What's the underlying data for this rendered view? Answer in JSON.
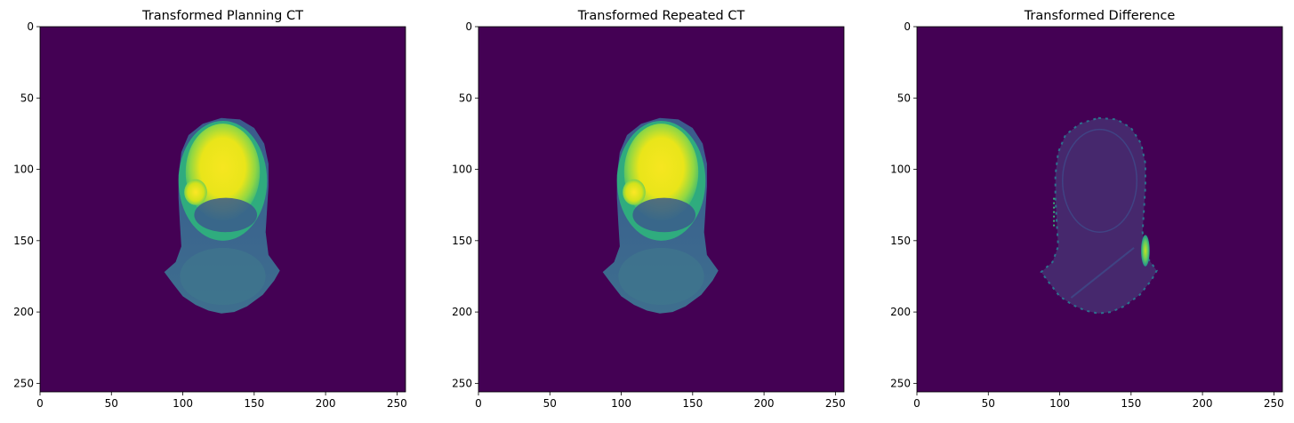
{
  "chart_data": [
    {
      "type": "heatmap",
      "title": "Transformed Planning CT",
      "xlim": [
        0,
        256
      ],
      "ylim": [
        256,
        0
      ],
      "xticks": [
        0,
        50,
        100,
        150,
        200,
        250
      ],
      "yticks": [
        0,
        50,
        100,
        150,
        200,
        250
      ],
      "grid": false,
      "colormap": "viridis",
      "background_color": "#440154",
      "content": "anatomical-ct-slice"
    },
    {
      "type": "heatmap",
      "title": "Transformed Repeated CT",
      "xlim": [
        0,
        256
      ],
      "ylim": [
        256,
        0
      ],
      "xticks": [
        0,
        50,
        100,
        150,
        200,
        250
      ],
      "yticks": [
        0,
        50,
        100,
        150,
        200,
        250
      ],
      "grid": false,
      "colormap": "viridis",
      "background_color": "#440154",
      "content": "anatomical-ct-slice"
    },
    {
      "type": "heatmap",
      "title": "Transformed Difference",
      "xlim": [
        0,
        256
      ],
      "ylim": [
        256,
        0
      ],
      "xticks": [
        0,
        50,
        100,
        150,
        200,
        250
      ],
      "yticks": [
        0,
        50,
        100,
        150,
        200,
        250
      ],
      "grid": false,
      "colormap": "viridis",
      "background_color": "#440154",
      "content": "difference-map"
    }
  ]
}
